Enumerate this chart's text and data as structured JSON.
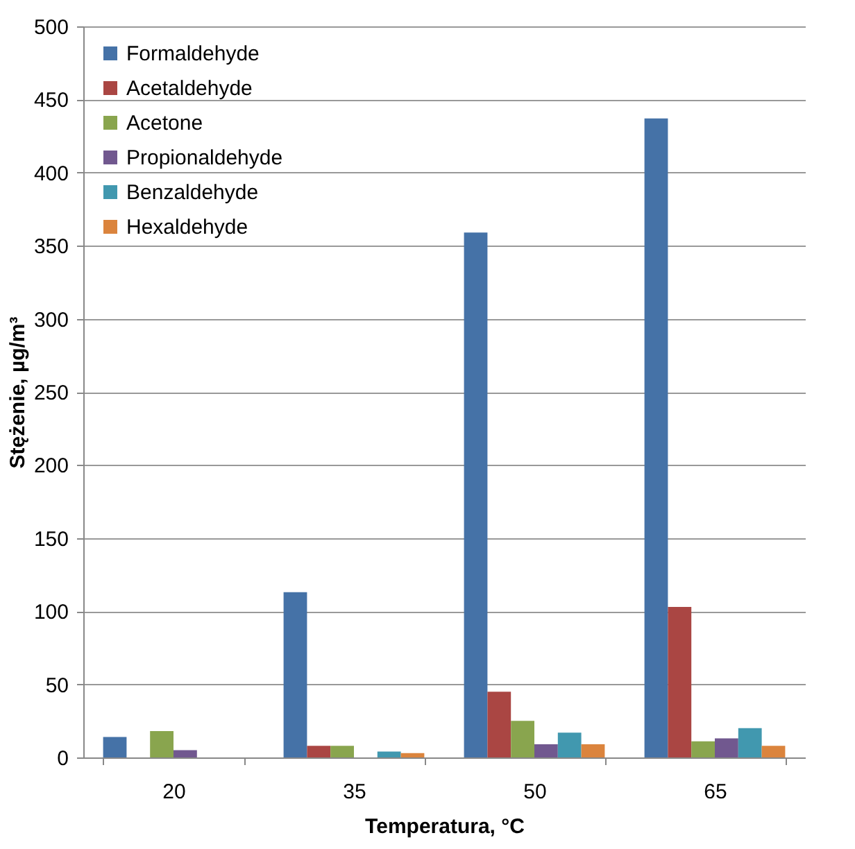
{
  "chart_data": {
    "type": "bar",
    "xlabel": "Temperatura, °C",
    "ylabel": "Stężenie, µg/m³",
    "categories": [
      "20",
      "35",
      "50",
      "65"
    ],
    "series": [
      {
        "name": "Formaldehyde",
        "color": "#4572a7",
        "values": [
          14,
          113,
          359,
          437
        ]
      },
      {
        "name": "Acetaldehyde",
        "color": "#aa4643",
        "values": [
          null,
          8,
          45,
          103
        ]
      },
      {
        "name": "Acetone",
        "color": "#89a54e",
        "values": [
          18,
          8,
          25,
          11
        ]
      },
      {
        "name": "Propionaldehyde",
        "color": "#71588f",
        "values": [
          5,
          null,
          9,
          13
        ]
      },
      {
        "name": "Benzaldehyde",
        "color": "#4198af",
        "values": [
          null,
          4,
          17,
          20
        ]
      },
      {
        "name": "Hexaldehyde",
        "color": "#db843d",
        "values": [
          null,
          3,
          9,
          8
        ]
      }
    ],
    "ylim": [
      0,
      500
    ],
    "yticks": [
      0,
      50,
      100,
      150,
      200,
      250,
      300,
      350,
      400,
      450,
      500
    ],
    "grid": "y",
    "legend": "top left"
  }
}
